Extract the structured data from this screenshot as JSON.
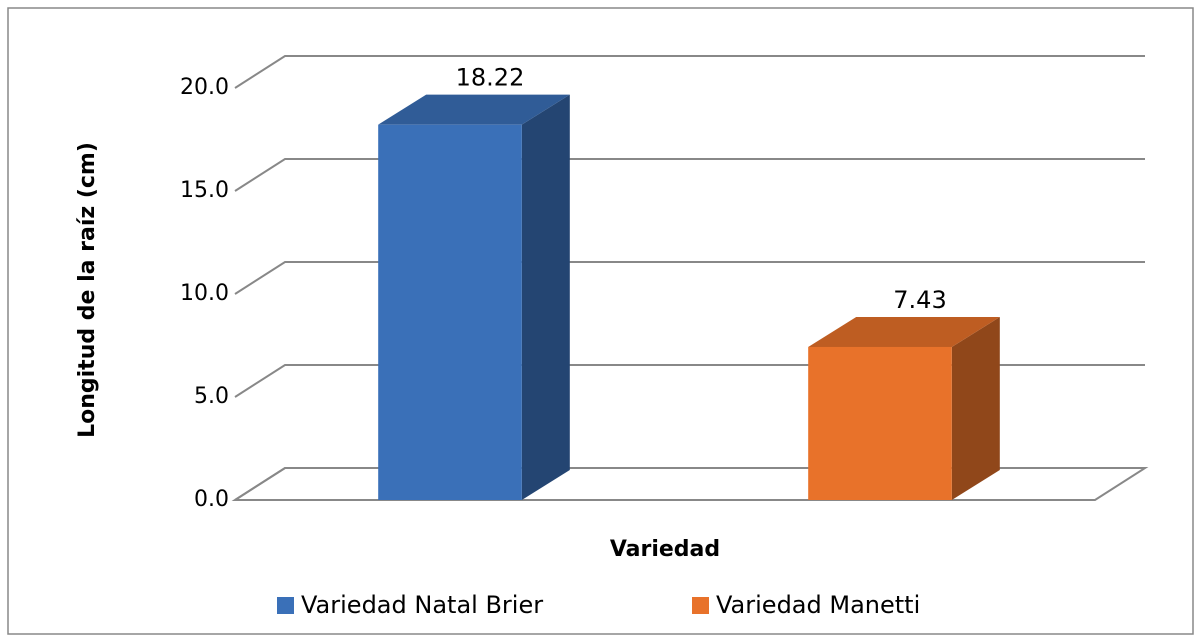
{
  "chart_data": {
    "type": "bar3d",
    "xlabel": "Variedad",
    "ylabel": "Longitud de la raíz (cm)",
    "categories": [
      null
    ],
    "series": [
      {
        "name": "Variedad Natal Brier",
        "color": "#3a70b8",
        "values": [
          18.22
        ]
      },
      {
        "name": "Variedad Manetti",
        "color": "#e8722a",
        "values": [
          7.43
        ]
      }
    ],
    "ylim": [
      0,
      20
    ],
    "yticks": [
      {
        "value": 0,
        "label": "0.0"
      },
      {
        "value": 5,
        "label": "5.0"
      },
      {
        "value": 10,
        "label": "10.0"
      },
      {
        "value": 15,
        "label": "15.0"
      },
      {
        "value": 20,
        "label": "20.0"
      }
    ],
    "grid": true,
    "legend": "bottom"
  }
}
